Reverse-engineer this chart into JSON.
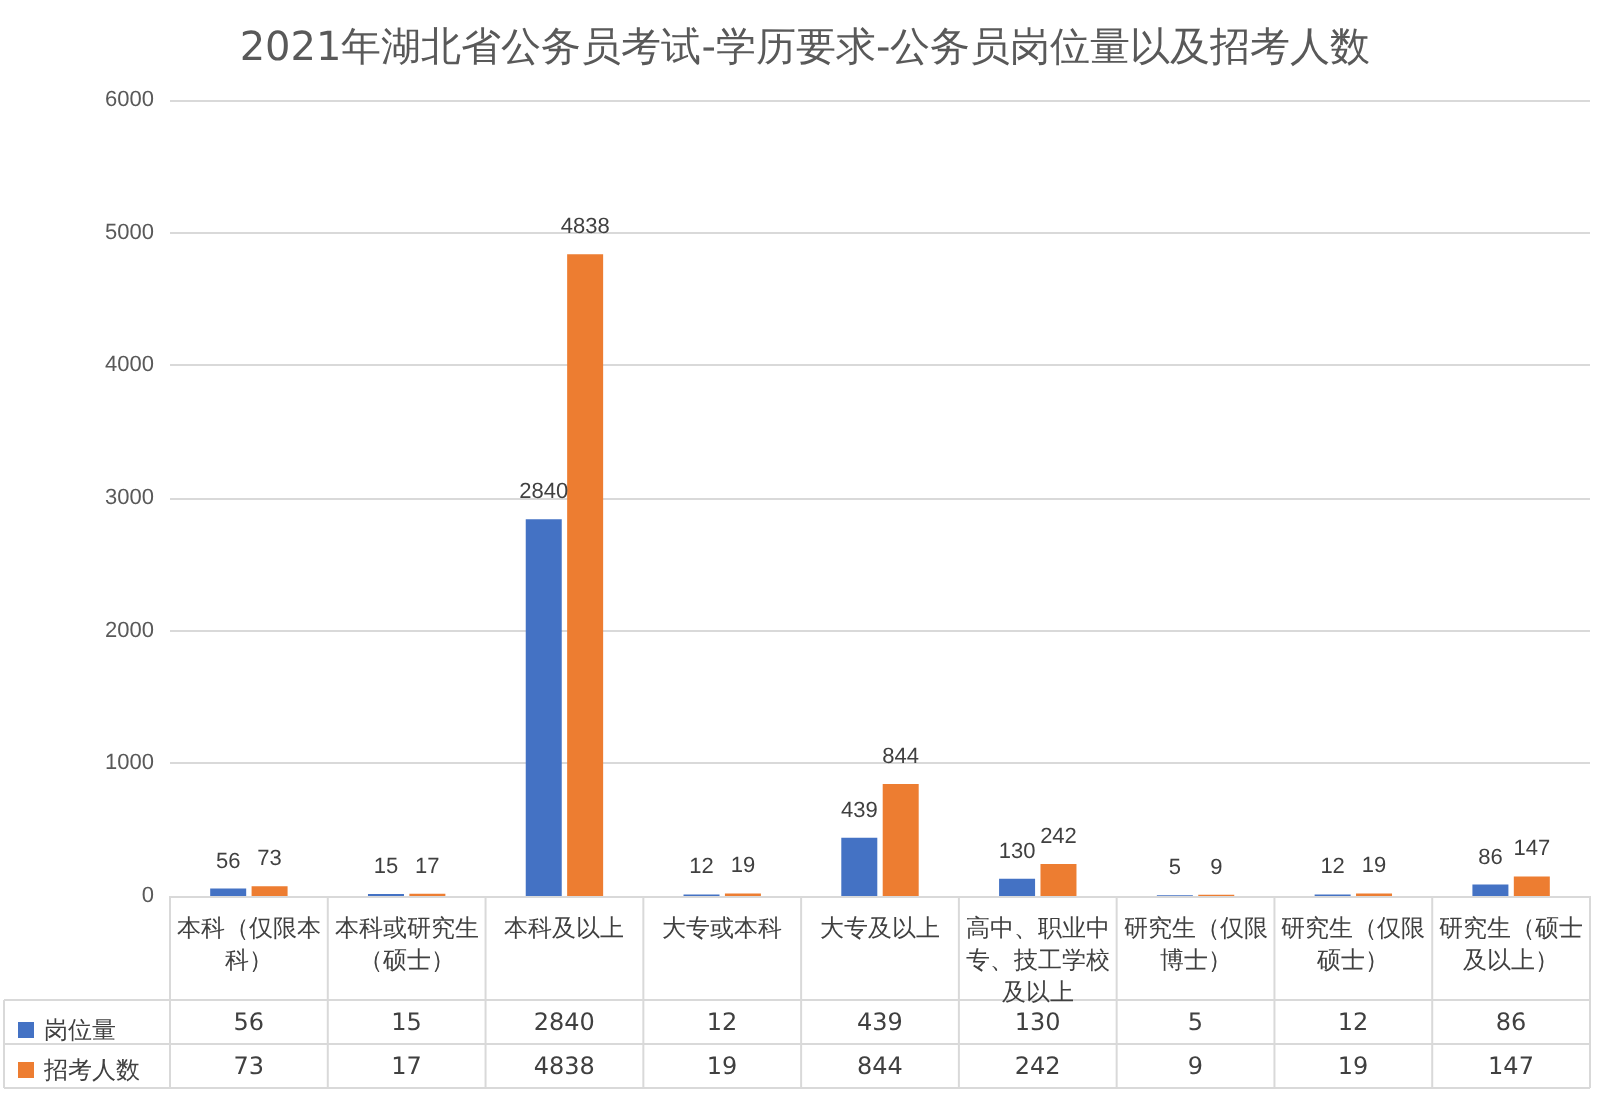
{
  "chart_data": {
    "type": "bar",
    "title": "2021年湖北省公务员考试-学历要求-公务员岗位量以及招考人数",
    "categories": [
      "本科（仅限本科）",
      "本科或研究生（硕士）",
      "本科及以上",
      "大专或本科",
      "大专及以上",
      "高中、职业中专、技工学校及以上",
      "研究生（仅限博士）",
      "研究生（仅限硕士）",
      "研究生（硕士及以上）"
    ],
    "series": [
      {
        "name": "岗位量",
        "color": "#4472c4",
        "values": [
          56,
          15,
          2840,
          12,
          439,
          130,
          5,
          12,
          86
        ]
      },
      {
        "name": "招考人数",
        "color": "#ed7d31",
        "values": [
          73,
          17,
          4838,
          19,
          844,
          242,
          9,
          19,
          147
        ]
      }
    ],
    "annotations": [
      "56",
      "15",
      "2840",
      "12",
      "439",
      "130",
      "5",
      "12",
      "86",
      "73",
      "17",
      "4838",
      "19",
      "844",
      "242",
      "9",
      "19",
      "147"
    ],
    "ylim": [
      0,
      6000
    ],
    "yticks": [
      0,
      1000,
      2000,
      3000,
      4000,
      5000,
      6000
    ],
    "grid": "y",
    "legend": "bottom",
    "data_labels": true
  }
}
